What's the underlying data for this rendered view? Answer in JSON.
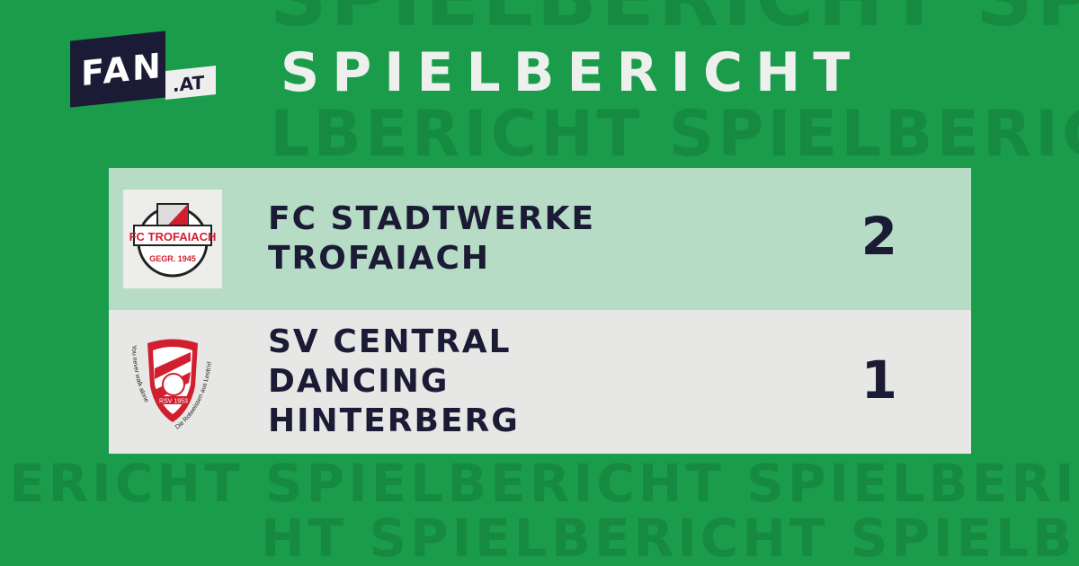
{
  "watermark": {
    "lines": [
      "SPIELBERICHT SPIELBERICHT SPIELBERICHT",
      "LBERICHT SPIELBERICHT SPIELBERICHT",
      "ERICHT SPIELBERICHT SPIELBERICHT",
      "HT SPIELBERICHT SPIELBERICHT"
    ]
  },
  "logo": {
    "main": "FAN",
    "suffix": ".AT"
  },
  "header": {
    "title": "SPIELBERICHT"
  },
  "match": {
    "home": {
      "name_lines": [
        "FC STADTWERKE",
        "TROFAIACH"
      ],
      "score": "2",
      "badge_text": "FC TROFAIACH",
      "badge_sub": "GEGR. 1945"
    },
    "away": {
      "name_lines": [
        "SV CENTRAL",
        "DANCING",
        "HINTERBERG"
      ],
      "score": "1",
      "badge_text": "RSV 1953",
      "badge_left": "You never walk alone",
      "badge_right": "Die Rotweissen aus Leob'n!"
    }
  },
  "colors": {
    "background": "#1b9c4b",
    "navy": "#1c1b35",
    "home_row": "#b6dcc6",
    "away_row": "#e7e8e6",
    "badge_red": "#d0202f"
  }
}
